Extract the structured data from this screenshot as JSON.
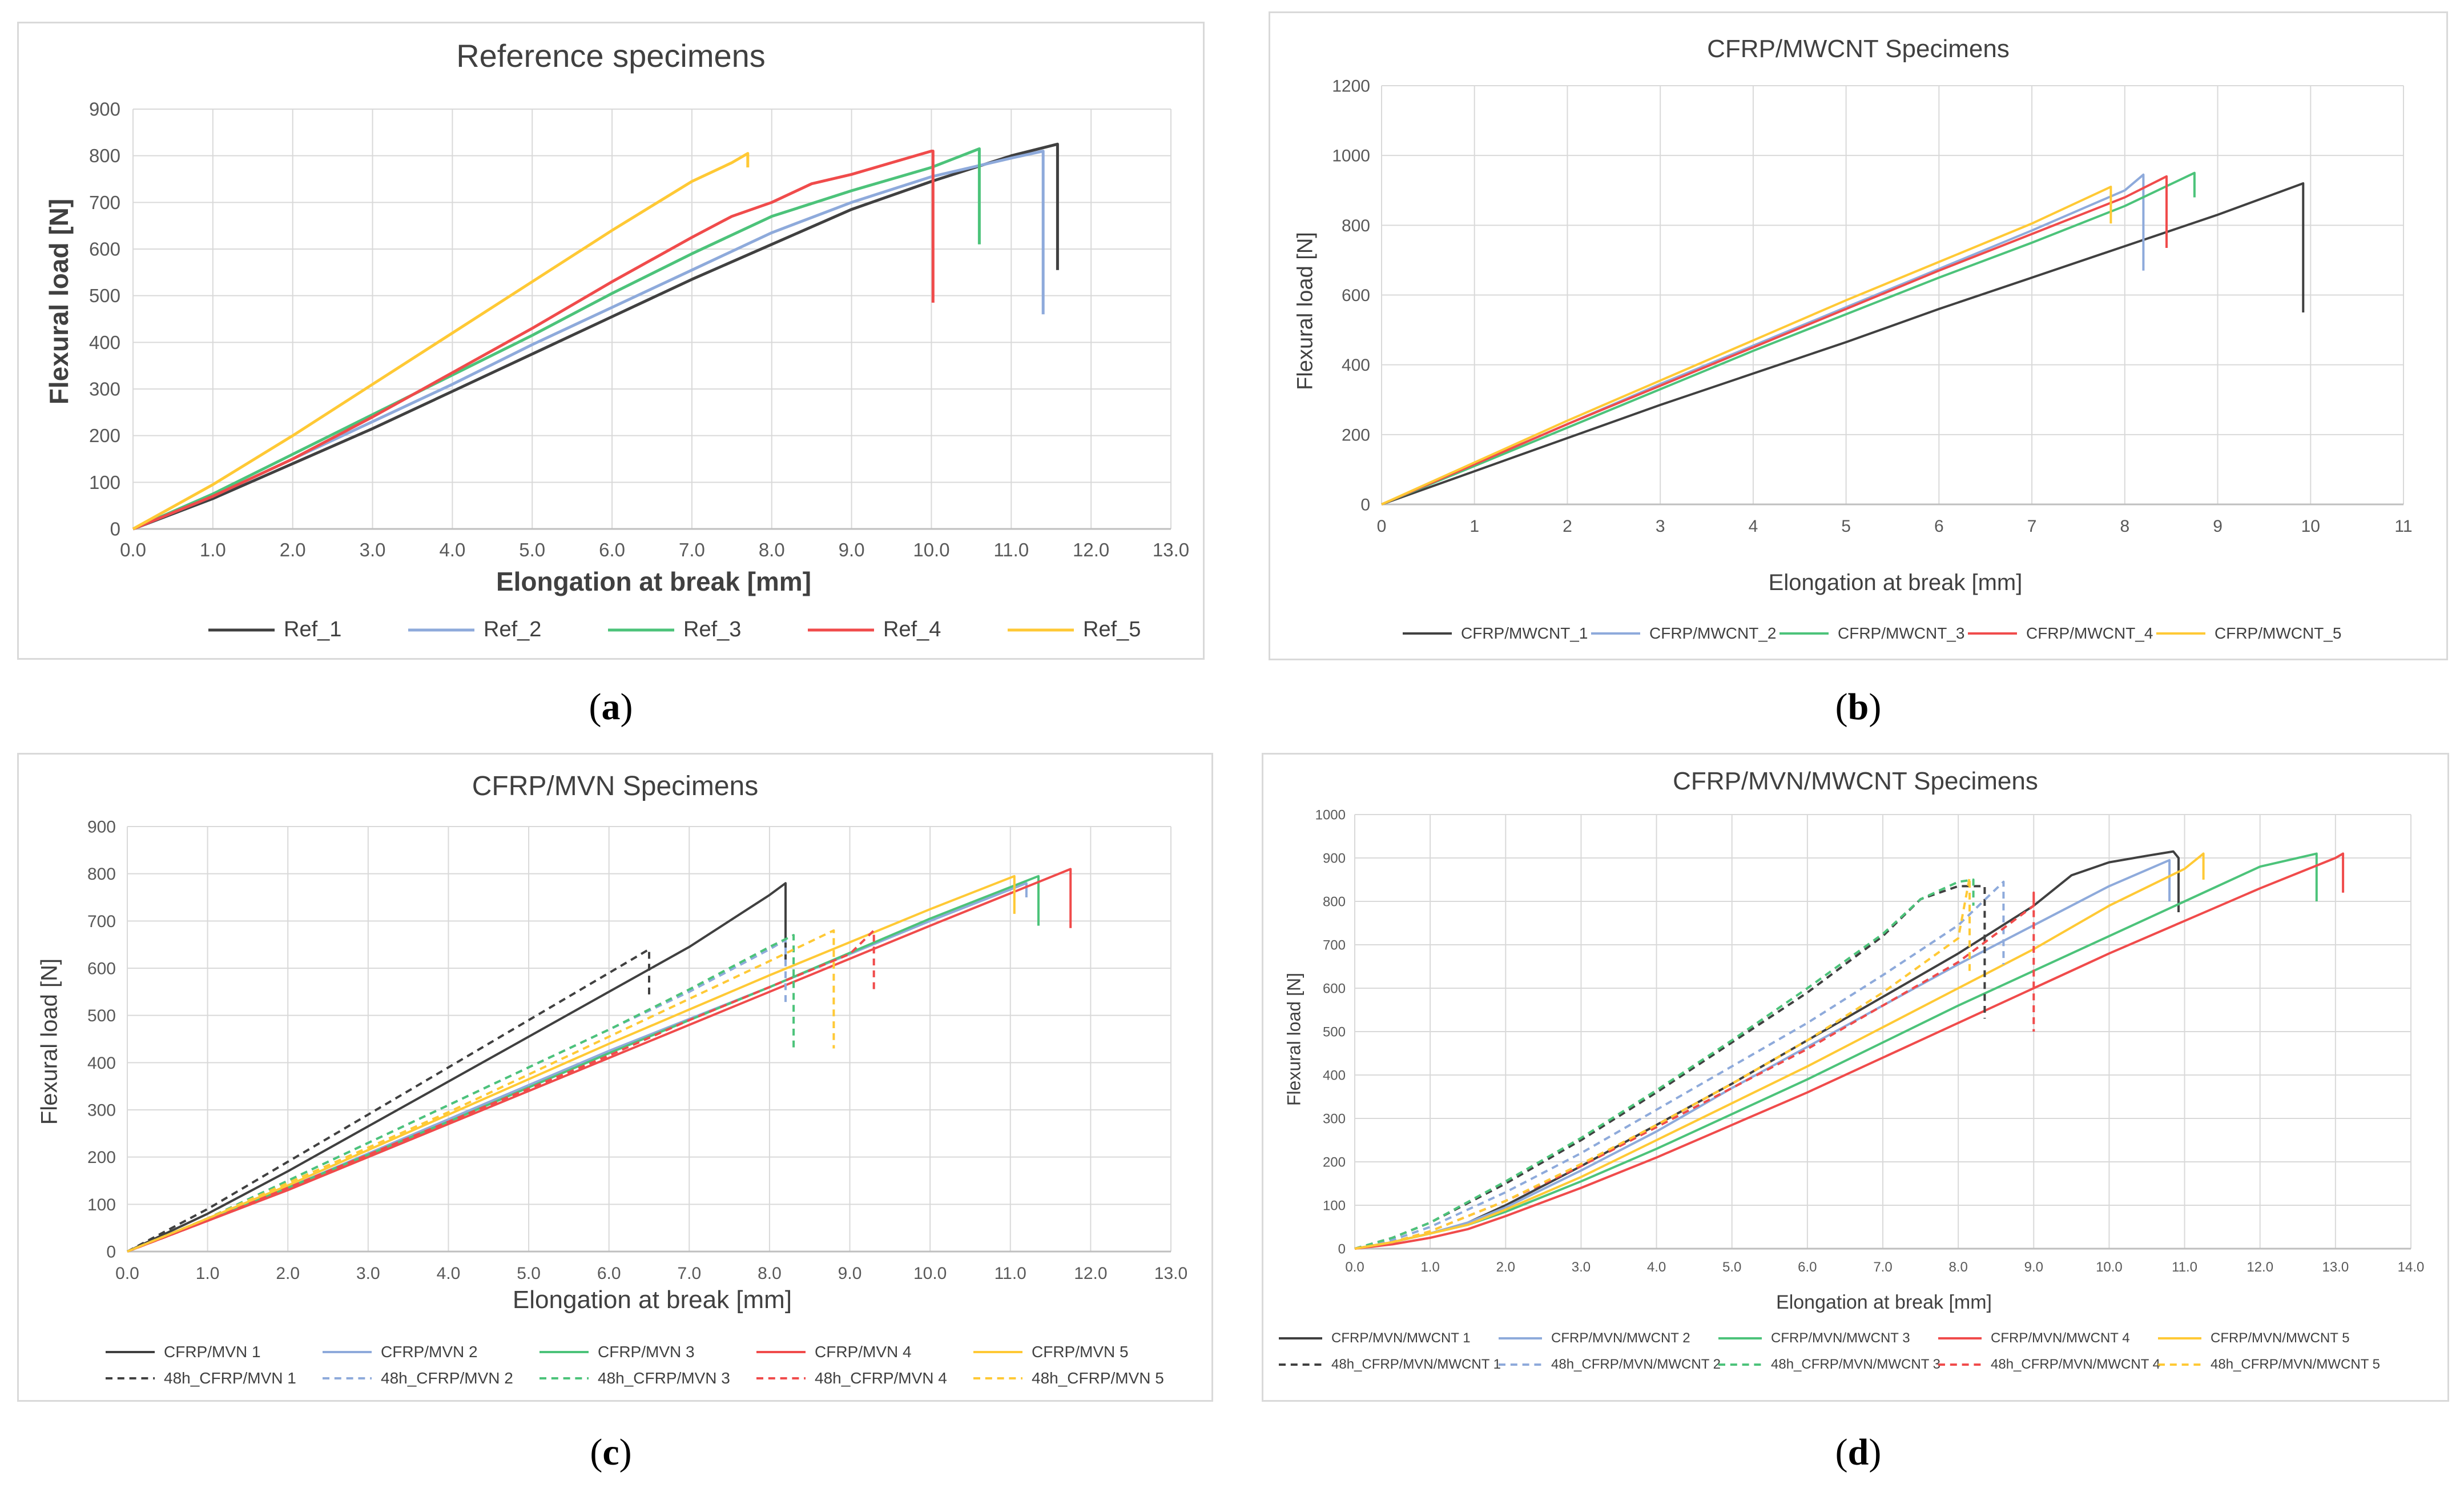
{
  "colors": {
    "c1": "#404040",
    "c2": "#8eaadb",
    "c3": "#4cc37a",
    "c4": "#f04b4b",
    "c5": "#ffc935",
    "grid": "#d9d9d9",
    "axis": "#bfbfbf"
  },
  "captions": {
    "a": "a",
    "b": "b",
    "c": "c",
    "d": "d"
  },
  "chart_data": [
    {
      "id": "a",
      "type": "line",
      "title": "Reference specimens",
      "xlabel": "Elongation at break [mm]",
      "ylabel": "Flexural load [N]",
      "xlim": [
        0,
        13
      ],
      "ylim": [
        0,
        900
      ],
      "xstep": 1,
      "ystep": 100,
      "xdecimals": 1,
      "grid": true,
      "legend_position": "bottom",
      "series": [
        {
          "name": "Ref_1",
          "color": "c1",
          "dashed": false,
          "x": [
            0,
            1,
            2,
            3,
            4,
            5,
            6,
            7,
            8,
            9,
            10,
            11,
            11.58,
            11.58
          ],
          "y": [
            0,
            65,
            140,
            215,
            295,
            375,
            455,
            535,
            610,
            685,
            745,
            800,
            825,
            555
          ]
        },
        {
          "name": "Ref_2",
          "color": "c2",
          "dashed": false,
          "x": [
            0,
            1,
            2,
            3,
            4,
            5,
            6,
            7,
            8,
            9,
            10,
            11,
            11.4,
            11.4
          ],
          "y": [
            0,
            70,
            150,
            230,
            310,
            395,
            475,
            555,
            635,
            700,
            755,
            795,
            810,
            460
          ]
        },
        {
          "name": "Ref_3",
          "color": "c3",
          "dashed": false,
          "x": [
            0,
            1,
            2,
            3,
            4,
            5,
            6,
            7,
            8,
            9,
            10,
            10.6,
            10.6
          ],
          "y": [
            0,
            75,
            160,
            245,
            330,
            415,
            505,
            590,
            670,
            725,
            775,
            815,
            610
          ]
        },
        {
          "name": "Ref_4",
          "color": "c4",
          "dashed": false,
          "x": [
            0,
            1,
            2,
            3,
            4,
            5,
            6,
            7,
            7.5,
            8,
            8.5,
            9,
            9.5,
            10,
            10.02,
            10.02
          ],
          "y": [
            0,
            70,
            150,
            240,
            335,
            430,
            530,
            625,
            670,
            700,
            740,
            760,
            785,
            810,
            810,
            485
          ]
        },
        {
          "name": "Ref_5",
          "color": "c5",
          "dashed": false,
          "x": [
            0,
            1,
            2,
            3,
            4,
            5,
            6,
            7,
            7.5,
            7.7,
            7.7
          ],
          "y": [
            0,
            95,
            200,
            310,
            420,
            530,
            640,
            745,
            785,
            805,
            775
          ]
        }
      ]
    },
    {
      "id": "b",
      "type": "line",
      "title": "CFRP/MWCNT Specimens",
      "xlabel": "Elongation at break [mm]",
      "ylabel": "Flexural load [N]",
      "xlim": [
        0,
        11
      ],
      "ylim": [
        0,
        1200
      ],
      "xstep": 1,
      "ystep": 200,
      "xdecimals": 0,
      "grid": true,
      "legend_position": "bottom",
      "series": [
        {
          "name": "CFRP/MWCNT_1",
          "color": "c1",
          "dashed": false,
          "x": [
            0,
            1,
            2,
            3,
            4,
            5,
            6,
            7,
            8,
            9,
            9.92,
            9.92
          ],
          "y": [
            0,
            95,
            190,
            285,
            375,
            465,
            560,
            650,
            740,
            830,
            920,
            550
          ]
        },
        {
          "name": "CFRP/MWCNT_2",
          "color": "c2",
          "dashed": false,
          "x": [
            0,
            1,
            2,
            3,
            4,
            5,
            6,
            7,
            8,
            8.2,
            8.2
          ],
          "y": [
            0,
            115,
            230,
            345,
            455,
            565,
            675,
            785,
            900,
            945,
            670
          ]
        },
        {
          "name": "CFRP/MWCNT_3",
          "color": "c3",
          "dashed": false,
          "x": [
            0,
            1,
            2,
            3,
            4,
            5,
            6,
            7,
            8,
            8.75,
            8.75
          ],
          "y": [
            0,
            110,
            220,
            330,
            440,
            545,
            650,
            750,
            855,
            950,
            880
          ]
        },
        {
          "name": "CFRP/MWCNT_4",
          "color": "c4",
          "dashed": false,
          "x": [
            0,
            1,
            2,
            3,
            4,
            5,
            6,
            7,
            8,
            8.45,
            8.45
          ],
          "y": [
            0,
            115,
            230,
            340,
            450,
            560,
            670,
            775,
            880,
            940,
            735
          ]
        },
        {
          "name": "CFRP/MWCNT_5",
          "color": "c5",
          "dashed": false,
          "x": [
            0,
            1,
            2,
            3,
            4,
            5,
            6,
            7,
            7.85,
            7.85
          ],
          "y": [
            0,
            120,
            240,
            355,
            470,
            585,
            695,
            805,
            910,
            805
          ]
        }
      ]
    },
    {
      "id": "c",
      "type": "line",
      "title": "CFRP/MVN Specimens",
      "xlabel": "Elongation at break [mm]",
      "ylabel": "Flexural load [N]",
      "xlim": [
        0,
        13
      ],
      "ylim": [
        0,
        900
      ],
      "xstep": 1,
      "ystep": 100,
      "xdecimals": 1,
      "grid": true,
      "legend_position": "bottom",
      "series": [
        {
          "name": "CFRP/MVN  1",
          "color": "c1",
          "dashed": false,
          "x": [
            0,
            1,
            2,
            3,
            4,
            5,
            6,
            7,
            8,
            8.2,
            8.2
          ],
          "y": [
            0,
            80,
            170,
            265,
            360,
            455,
            550,
            645,
            755,
            780,
            615
          ]
        },
        {
          "name": "CFRP/MVN 2",
          "color": "c2",
          "dashed": false,
          "x": [
            0,
            2,
            4,
            6,
            8,
            10,
            11.2,
            11.2
          ],
          "y": [
            0,
            135,
            280,
            425,
            560,
            700,
            780,
            750
          ]
        },
        {
          "name": "CFRP/MVN 3",
          "color": "c3",
          "dashed": false,
          "x": [
            0,
            2,
            4,
            6,
            8,
            10,
            11.35,
            11.35
          ],
          "y": [
            0,
            135,
            275,
            420,
            560,
            705,
            795,
            690
          ]
        },
        {
          "name": "CFRP/MVN 4",
          "color": "c4",
          "dashed": false,
          "x": [
            0,
            2,
            4,
            6,
            8,
            10,
            11.75,
            11.75
          ],
          "y": [
            0,
            130,
            270,
            410,
            550,
            690,
            810,
            685
          ]
        },
        {
          "name": "CFRP/MVN 5",
          "color": "c5",
          "dashed": false,
          "x": [
            0,
            2,
            4,
            6,
            8,
            10,
            11.05,
            11.05
          ],
          "y": [
            0,
            140,
            290,
            440,
            585,
            725,
            795,
            715
          ]
        },
        {
          "name": "48h_CFRP/MVN 1",
          "color": "c1",
          "dashed": true,
          "x": [
            0,
            1,
            2,
            3,
            4,
            5,
            6,
            6.5,
            6.5
          ],
          "y": [
            0,
            90,
            190,
            290,
            390,
            490,
            590,
            640,
            540
          ]
        },
        {
          "name": "48h_CFRP/MVN 2",
          "color": "c2",
          "dashed": true,
          "x": [
            0,
            1,
            2,
            3,
            4,
            5,
            6,
            7,
            8,
            8.2,
            8.2
          ],
          "y": [
            0,
            70,
            150,
            230,
            310,
            390,
            470,
            550,
            640,
            660,
            525
          ]
        },
        {
          "name": "48h_CFRP/MVN 3",
          "color": "c3",
          "dashed": true,
          "x": [
            0,
            1,
            2,
            3,
            4,
            5,
            6,
            7,
            8,
            8.3,
            8.3
          ],
          "y": [
            0,
            70,
            150,
            230,
            310,
            390,
            470,
            555,
            645,
            670,
            430
          ]
        },
        {
          "name": "48h_CFRP/MVN 4",
          "color": "c4",
          "dashed": true,
          "x": [
            0,
            1,
            2,
            3,
            4,
            5,
            6,
            7,
            8,
            9,
            9.3,
            9.3
          ],
          "y": [
            0,
            65,
            135,
            205,
            275,
            345,
            415,
            490,
            560,
            630,
            680,
            545
          ]
        },
        {
          "name": "48h_CFRP/MVN 5",
          "color": "c5",
          "dashed": true,
          "x": [
            0,
            1,
            2,
            3,
            4,
            5,
            6,
            7,
            8,
            8.8,
            8.8
          ],
          "y": [
            0,
            70,
            145,
            220,
            295,
            375,
            455,
            535,
            615,
            680,
            430
          ]
        }
      ]
    },
    {
      "id": "d",
      "type": "line",
      "title": "CFRP/MVN/MWCNT Specimens",
      "xlabel": "Elongation at break [mm]",
      "ylabel": "Flexural load [N]",
      "xlim": [
        0,
        14
      ],
      "ylim": [
        0,
        1000
      ],
      "xstep": 1,
      "ystep": 100,
      "xdecimals": 1,
      "grid": true,
      "legend_position": "bottom",
      "series": [
        {
          "name": "CFRP/MVN/MWCNT 1",
          "color": "c1",
          "dashed": false,
          "x": [
            0,
            0.5,
            1,
            1.5,
            2,
            3,
            4,
            5,
            6,
            7,
            8,
            9,
            9.5,
            10,
            10.5,
            10.85,
            10.92,
            10.92
          ],
          "y": [
            0,
            15,
            35,
            60,
            100,
            190,
            285,
            380,
            480,
            580,
            680,
            790,
            860,
            890,
            905,
            915,
            900,
            775
          ]
        },
        {
          "name": "CFRP/MVN/MWCNT 2",
          "color": "c2",
          "dashed": false,
          "x": [
            0,
            0.5,
            1,
            1.5,
            2,
            3,
            4,
            5,
            6,
            7,
            8,
            9,
            10,
            10.8,
            10.8
          ],
          "y": [
            0,
            15,
            35,
            60,
            95,
            180,
            270,
            370,
            465,
            560,
            655,
            745,
            835,
            895,
            800
          ]
        },
        {
          "name": "CFRP/MVN/MWCNT 3",
          "color": "c3",
          "dashed": false,
          "x": [
            0,
            0.5,
            1,
            1.5,
            2,
            3,
            4,
            5,
            6,
            7,
            8,
            9,
            10,
            11,
            12,
            12.75,
            12.75
          ],
          "y": [
            0,
            15,
            35,
            55,
            85,
            155,
            230,
            310,
            390,
            475,
            560,
            640,
            720,
            800,
            880,
            910,
            800
          ]
        },
        {
          "name": "CFRP/MVN/MWCNT 4",
          "color": "c4",
          "dashed": false,
          "x": [
            0,
            0.5,
            1,
            1.5,
            2,
            3,
            4,
            5,
            6,
            7,
            8,
            9,
            10,
            11,
            12,
            13,
            13.1,
            13.1
          ],
          "y": [
            0,
            10,
            25,
            45,
            75,
            140,
            210,
            285,
            360,
            440,
            520,
            600,
            680,
            755,
            830,
            900,
            910,
            820
          ]
        },
        {
          "name": "CFRP/MVN/MWCNT 5",
          "color": "c5",
          "dashed": false,
          "x": [
            0,
            0.5,
            1,
            1.5,
            2,
            3,
            4,
            5,
            6,
            7,
            8,
            9,
            10,
            11,
            11.25,
            11.25
          ],
          "y": [
            0,
            15,
            35,
            55,
            90,
            165,
            250,
            335,
            420,
            510,
            600,
            690,
            790,
            875,
            910,
            850
          ]
        },
        {
          "name": "48h_CFRP/MVN/MWCNT 1",
          "color": "c1",
          "dashed": true,
          "x": [
            0,
            0.5,
            1,
            2,
            3,
            4,
            5,
            6,
            7,
            7.5,
            8,
            8.35,
            8.35
          ],
          "y": [
            0,
            25,
            60,
            150,
            250,
            360,
            475,
            590,
            720,
            805,
            835,
            835,
            530
          ]
        },
        {
          "name": "48h_CFRP/MVN/MWCNT 2",
          "color": "c2",
          "dashed": true,
          "x": [
            0,
            0.5,
            1,
            2,
            3,
            4,
            5,
            6,
            7,
            8,
            8.6,
            8.6
          ],
          "y": [
            0,
            20,
            50,
            130,
            220,
            320,
            420,
            520,
            630,
            745,
            845,
            655
          ]
        },
        {
          "name": "48h_CFRP/MVN/MWCNT 3",
          "color": "c3",
          "dashed": true,
          "x": [
            0,
            0.5,
            1,
            2,
            3,
            4,
            5,
            6,
            7,
            7.5,
            8,
            8.2,
            8.2
          ],
          "y": [
            0,
            25,
            60,
            155,
            255,
            365,
            480,
            600,
            725,
            805,
            845,
            850,
            790
          ]
        },
        {
          "name": "48h_CFRP/MVN/MWCNT 4",
          "color": "c4",
          "dashed": true,
          "x": [
            0,
            0.5,
            1,
            2,
            3,
            4,
            5,
            6,
            7,
            8,
            9,
            9,
            9
          ],
          "y": [
            0,
            15,
            40,
            110,
            190,
            280,
            370,
            460,
            560,
            660,
            790,
            820,
            500
          ]
        },
        {
          "name": "48h_CFRP/MVN/MWCNT 5",
          "color": "c5",
          "dashed": true,
          "x": [
            0,
            0.5,
            1,
            2,
            3,
            4,
            5,
            6,
            7,
            8,
            8.15,
            8.15
          ],
          "y": [
            0,
            15,
            40,
            110,
            195,
            285,
            380,
            480,
            590,
            715,
            855,
            630
          ]
        }
      ]
    }
  ]
}
